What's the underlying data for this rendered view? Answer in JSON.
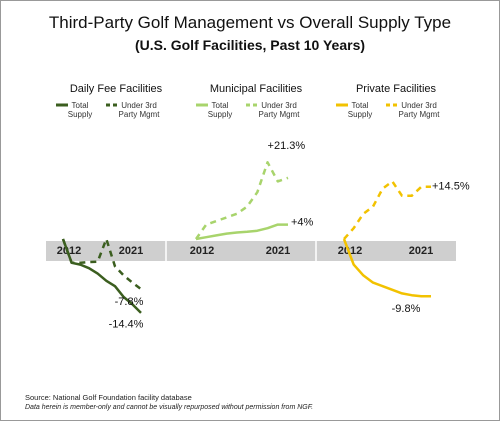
{
  "title": "Third-Party Golf Management vs Overall Supply Type",
  "subtitle": "(U.S. Golf Facilities, Past 10 Years)",
  "source": "Source: National Golf Foundation facility database",
  "note": "Data herein is member-only and cannot be visually repurposed without permission from NGF.",
  "chart_data": [
    {
      "type": "line",
      "title": "Daily Fee Facilities",
      "x": [
        2012,
        2013,
        2014,
        2015,
        2016,
        2017,
        2018,
        2019,
        2020,
        2021
      ],
      "xticks": [
        2012,
        2021
      ],
      "series": [
        {
          "name": "Total Supply",
          "color": "#3b5e1f",
          "dashed": false,
          "values": [
            0,
            -0.5,
            -1,
            -2,
            -3.5,
            -5.5,
            -7,
            -10,
            -12,
            -14.4
          ],
          "value_labels": [
            null,
            null,
            null,
            null,
            null,
            null,
            null,
            null,
            null,
            "-14.4%"
          ]
        },
        {
          "name": "Under 3rd Party Mgmt",
          "color": "#3b5e1f",
          "dashed": true,
          "values": [
            0,
            -0.5,
            -0.5,
            -0.3,
            -0.2,
            0,
            -1.5,
            -4,
            -6,
            -7.8
          ],
          "value_labels": [
            null,
            null,
            null,
            null,
            null,
            null,
            null,
            null,
            null,
            "-7.8%"
          ]
        }
      ]
    },
    {
      "type": "line",
      "title": "Municipal Facilities",
      "x": [
        2012,
        2013,
        2014,
        2015,
        2016,
        2017,
        2018,
        2019,
        2020,
        2021
      ],
      "xticks": [
        2012,
        2021
      ],
      "series": [
        {
          "name": "Total Supply",
          "color": "#a8d46c",
          "dashed": false,
          "values": [
            0,
            0.5,
            1,
            1.5,
            1.8,
            2,
            2.3,
            3,
            4,
            4
          ],
          "value_labels": [
            null,
            null,
            null,
            null,
            null,
            null,
            null,
            null,
            null,
            "+4%"
          ]
        },
        {
          "name": "Under 3rd Party Mgmt",
          "color": "#a8d46c",
          "dashed": true,
          "values": [
            0,
            4,
            5,
            6,
            7,
            9,
            13,
            21.3,
            16,
            17
          ],
          "value_labels": [
            null,
            null,
            null,
            null,
            null,
            null,
            null,
            "+21.3%",
            null,
            null
          ]
        }
      ]
    },
    {
      "type": "line",
      "title": "Private Facilities",
      "x": [
        2012,
        2013,
        2014,
        2015,
        2016,
        2017,
        2018,
        2019,
        2020,
        2021
      ],
      "xticks": [
        2012,
        2021
      ],
      "series": [
        {
          "name": "Total Supply",
          "color": "#f2c200",
          "dashed": false,
          "values": [
            0,
            -1,
            -4,
            -6,
            -7,
            -8,
            -9,
            -9.5,
            -9.8,
            -9.8
          ],
          "value_labels": [
            null,
            null,
            null,
            null,
            null,
            null,
            null,
            null,
            null,
            "-9.8%"
          ]
        },
        {
          "name": "Under 3rd Party Mgmt",
          "color": "#f2c200",
          "dashed": true,
          "values": [
            0,
            3,
            7,
            9,
            14,
            16,
            12,
            12,
            14.5,
            14.5
          ],
          "value_labels": [
            null,
            null,
            null,
            null,
            null,
            null,
            null,
            null,
            null,
            "+14.5%"
          ]
        }
      ]
    }
  ]
}
